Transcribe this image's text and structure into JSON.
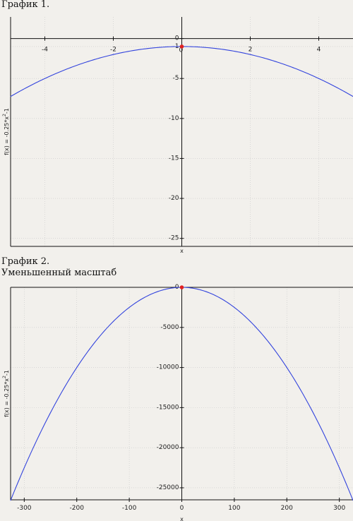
{
  "colors": {
    "background": "#f2f0ec",
    "curve": "#3344dd",
    "point": "#e02020",
    "grid": "#c8c8c8",
    "axis": "#111111"
  },
  "chart_data": [
    {
      "type": "line",
      "title": "График 1.",
      "subtitle": "",
      "xlabel": "x",
      "ylabel": "f(x) = -0.25*x^2-1",
      "ylabel_parts": {
        "base": "f(x) = -0.25*x",
        "sup": "2",
        "tail": "-1"
      },
      "xlim": [
        -5,
        5
      ],
      "ylim": [
        -26,
        2.7
      ],
      "x_ticks": [
        -4,
        -2,
        0,
        2,
        4
      ],
      "x_tick_labels": [
        "-4",
        "-2",
        "0",
        "2",
        "4"
      ],
      "y_ticks": [
        0,
        -1,
        -5,
        -10,
        -15,
        -20,
        -25
      ],
      "y_tick_labels": [
        "0",
        "-1",
        "-5",
        "-10",
        "-15",
        "-20",
        "-25"
      ],
      "grid": true,
      "series": [
        {
          "formula": "-0.25*x^2-1",
          "x": [
            -5,
            -4,
            -3,
            -2,
            -1,
            0,
            1,
            2,
            3,
            4,
            5
          ],
          "y": [
            -7.25,
            -5,
            -3.25,
            -2,
            -1.25,
            -1,
            -1.25,
            -2,
            -3.25,
            -5,
            -7.25
          ]
        }
      ],
      "points": [
        {
          "x": 0,
          "y": -1
        }
      ]
    },
    {
      "type": "line",
      "title": "График 2.",
      "subtitle": "Уменьшенный масштаб",
      "xlabel": "x",
      "ylabel": "f(x) = -0.25*x^2-1",
      "ylabel_parts": {
        "base": "f(x) = -0.25*x",
        "sup": "2",
        "tail": "-1"
      },
      "xlim": [
        -326,
        326
      ],
      "ylim": [
        -26500,
        0
      ],
      "x_ticks": [
        -300,
        -200,
        -100,
        0,
        100,
        200,
        300
      ],
      "x_tick_labels": [
        "-300",
        "-200",
        "-100",
        "0",
        "100",
        "200",
        "300"
      ],
      "y_ticks": [
        0,
        -5000,
        -10000,
        -15000,
        -20000,
        -25000
      ],
      "y_tick_labels": [
        "0",
        "-5000",
        "-10000",
        "-15000",
        "-20000",
        "-25000"
      ],
      "grid": true,
      "series": [
        {
          "formula": "-0.25*x^2-1",
          "x": [
            -326,
            -300,
            -200,
            -100,
            0,
            100,
            200,
            300,
            326
          ],
          "y": [
            -26570,
            -22501,
            -10001,
            -2501,
            -1,
            -2501,
            -10001,
            -22501,
            -26570
          ]
        }
      ],
      "points": [
        {
          "x": 0,
          "y": -1
        }
      ]
    }
  ]
}
